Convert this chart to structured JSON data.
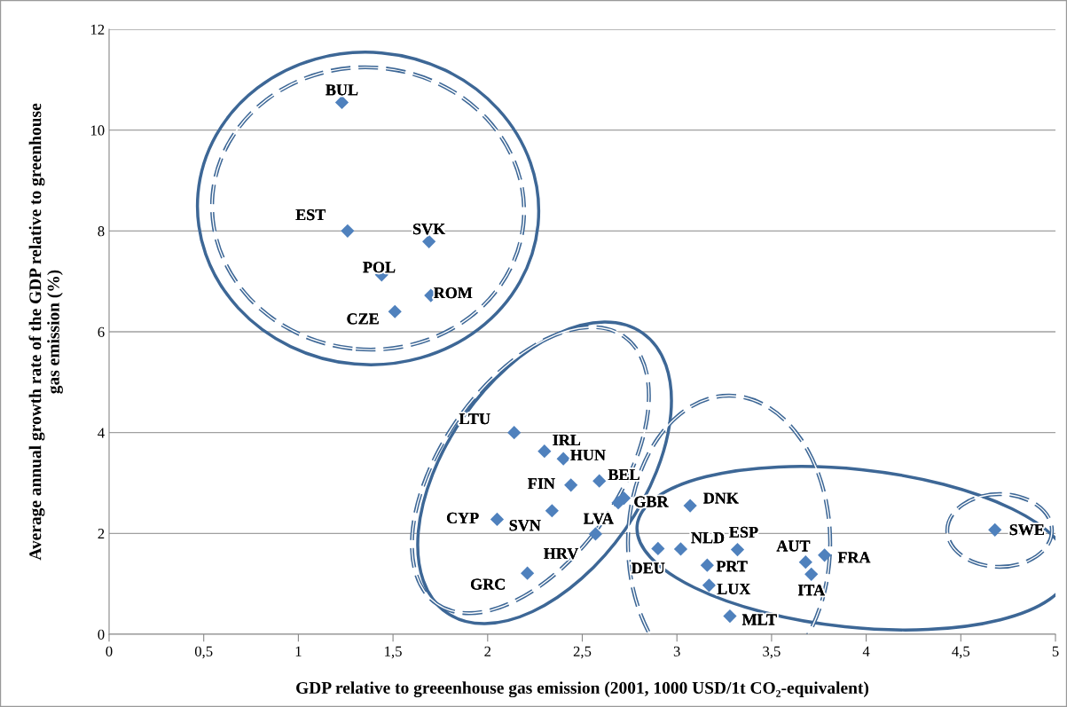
{
  "chart_data": {
    "type": "scatter",
    "xlabel": "GDP relative to greeenhouse gas emission (2001, 1000 USD/1t CO₂-equivalent)",
    "ylabel": "Average annual growth rate of the GDP relative to greenhouse\ngas emission (%)",
    "xlim": [
      0,
      5
    ],
    "ylim": [
      0,
      12
    ],
    "xticks": [
      0,
      {
        "value": 0.5,
        "label": "0,5"
      },
      1,
      {
        "value": 1.5,
        "label": "1,5"
      },
      2,
      {
        "value": 2.5,
        "label": "2,5"
      },
      3,
      {
        "value": 3.5,
        "label": "3,5"
      },
      4,
      {
        "value": 4.5,
        "label": "4,5"
      },
      5
    ],
    "yticks": [
      0,
      2,
      4,
      6,
      8,
      10,
      12
    ],
    "grid": "y",
    "marker": "diamond",
    "series": [
      {
        "color": "#4f81bd",
        "x": [
          1.23,
          1.26,
          1.69,
          1.44,
          1.7,
          1.51,
          2.14,
          2.3,
          2.4,
          2.44,
          2.59,
          2.72,
          2.69,
          2.34,
          2.05,
          2.57,
          2.21,
          3.07,
          2.9,
          3.02,
          3.32,
          3.16,
          3.17,
          3.28,
          3.68,
          3.78,
          3.71,
          4.68
        ],
        "values": [
          10.55,
          8.0,
          7.79,
          7.13,
          6.72,
          6.4,
          4.0,
          3.63,
          3.48,
          2.96,
          3.04,
          2.7,
          2.61,
          2.45,
          2.28,
          1.99,
          1.21,
          2.55,
          1.7,
          1.69,
          1.68,
          1.37,
          0.97,
          0.36,
          1.43,
          1.57,
          1.19,
          2.07
        ]
      }
    ],
    "annotations": [
      {
        "text": "BUL",
        "x": 1.23,
        "y": 10.55
      },
      {
        "text": "EST",
        "x": 1.26,
        "y": 8.0
      },
      {
        "text": "SVK",
        "x": 1.69,
        "y": 7.79
      },
      {
        "text": "POL",
        "x": 1.44,
        "y": 7.13
      },
      {
        "text": "ROM",
        "x": 1.7,
        "y": 6.72
      },
      {
        "text": "CZE",
        "x": 1.51,
        "y": 6.4
      },
      {
        "text": "LTU",
        "x": 2.14,
        "y": 4.0
      },
      {
        "text": "IRL",
        "x": 2.3,
        "y": 3.63
      },
      {
        "text": "HUN",
        "x": 2.4,
        "y": 3.48
      },
      {
        "text": "FIN",
        "x": 2.44,
        "y": 2.96
      },
      {
        "text": "BEL",
        "x": 2.59,
        "y": 3.04
      },
      {
        "text": "GBR",
        "x": 2.72,
        "y": 2.7
      },
      {
        "text": "LVA",
        "x": 2.69,
        "y": 2.61
      },
      {
        "text": "SVN",
        "x": 2.34,
        "y": 2.45
      },
      {
        "text": "CYP",
        "x": 2.05,
        "y": 2.28
      },
      {
        "text": "HRV",
        "x": 2.57,
        "y": 1.99
      },
      {
        "text": "GRC",
        "x": 2.21,
        "y": 1.21
      },
      {
        "text": "DNK",
        "x": 3.07,
        "y": 2.55
      },
      {
        "text": "DEU",
        "x": 2.9,
        "y": 1.7
      },
      {
        "text": "NLD",
        "x": 3.02,
        "y": 1.69
      },
      {
        "text": "ESP",
        "x": 3.32,
        "y": 1.68
      },
      {
        "text": "PRT",
        "x": 3.16,
        "y": 1.37
      },
      {
        "text": "LUX",
        "x": 3.17,
        "y": 0.97
      },
      {
        "text": "MLT",
        "x": 3.28,
        "y": 0.36
      },
      {
        "text": "AUT",
        "x": 3.68,
        "y": 1.43
      },
      {
        "text": "FRA",
        "x": 3.78,
        "y": 1.57
      },
      {
        "text": "ITA",
        "x": 3.71,
        "y": 1.19
      },
      {
        "text": "SWE",
        "x": 4.68,
        "y": 2.07
      }
    ]
  }
}
